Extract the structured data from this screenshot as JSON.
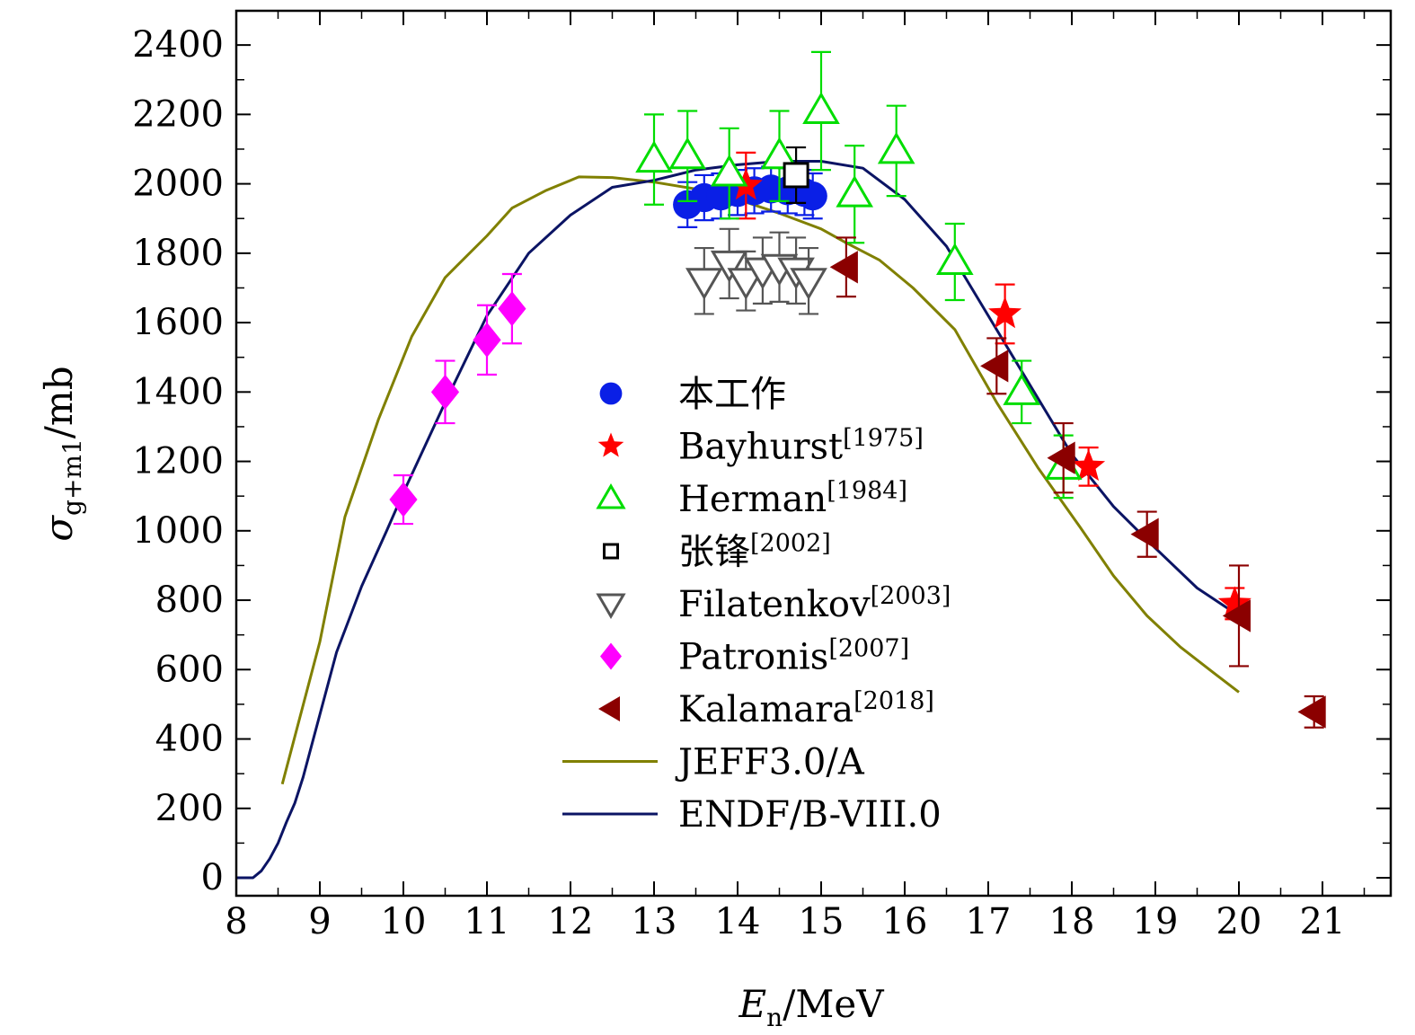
{
  "chart_data": {
    "type": "scatter",
    "xlabel": {
      "symbol": "E",
      "sub": "n",
      "unit": "/MeV"
    },
    "ylabel": {
      "symbol": "σ",
      "sub": "g+m1",
      "unit": "/mb"
    },
    "xlim": [
      8,
      21.5
    ],
    "ylim": [
      0,
      2600
    ],
    "xticks": [
      8,
      9,
      10,
      11,
      12,
      13,
      14,
      15,
      16,
      17,
      18,
      19,
      20,
      21
    ],
    "yticks": [
      0,
      200,
      400,
      600,
      800,
      1000,
      1200,
      1400,
      1600,
      1800,
      2000,
      2200,
      2400
    ],
    "legend_position": "center",
    "series": [
      {
        "name": "本工作",
        "sup": "",
        "marker": "circle",
        "color": "#0a1fe6",
        "points": [
          {
            "x": 13.4,
            "y": 1940,
            "err": 65
          },
          {
            "x": 13.6,
            "y": 1960,
            "err": 65
          },
          {
            "x": 13.8,
            "y": 1965,
            "err": 65
          },
          {
            "x": 14.0,
            "y": 1975,
            "err": 65
          },
          {
            "x": 14.2,
            "y": 1980,
            "err": 65
          },
          {
            "x": 14.4,
            "y": 1985,
            "err": 65
          },
          {
            "x": 14.6,
            "y": 1980,
            "err": 65
          },
          {
            "x": 14.8,
            "y": 1975,
            "err": 65
          },
          {
            "x": 14.9,
            "y": 1965,
            "err": 65
          }
        ]
      },
      {
        "name": "Bayhurst",
        "sup": "[1975]",
        "marker": "star",
        "color": "#ff0000",
        "points": [
          {
            "x": 14.1,
            "y": 1995,
            "err": 95
          },
          {
            "x": 17.2,
            "y": 1625,
            "err": 85
          },
          {
            "x": 18.2,
            "y": 1185,
            "err": 55
          },
          {
            "x": 19.95,
            "y": 790,
            "err": 45
          }
        ]
      },
      {
        "name": "Herman",
        "sup": "[1984]",
        "marker": "triangle-up",
        "color": "#00dd00",
        "points": [
          {
            "x": 13.0,
            "y": 2070,
            "err": 130
          },
          {
            "x": 13.4,
            "y": 2080,
            "err": 130
          },
          {
            "x": 13.9,
            "y": 2030,
            "err": 130
          },
          {
            "x": 14.5,
            "y": 2080,
            "err": 130
          },
          {
            "x": 15.0,
            "y": 2210,
            "err": 170
          },
          {
            "x": 15.4,
            "y": 1970,
            "err": 140
          },
          {
            "x": 15.9,
            "y": 2095,
            "err": 130
          },
          {
            "x": 16.6,
            "y": 1775,
            "err": 110
          },
          {
            "x": 17.4,
            "y": 1400,
            "err": 90
          },
          {
            "x": 17.9,
            "y": 1185,
            "err": 90
          }
        ]
      },
      {
        "name": "张锋",
        "sup": "[2002]",
        "marker": "square",
        "color": "#000000",
        "points": [
          {
            "x": 14.7,
            "y": 2025,
            "err": 80
          }
        ]
      },
      {
        "name": "Filatenkov",
        "sup": "[2003]",
        "marker": "triangle-down",
        "color": "#555555",
        "points": [
          {
            "x": 13.6,
            "y": 1720,
            "err": 95
          },
          {
            "x": 13.9,
            "y": 1770,
            "err": 100
          },
          {
            "x": 14.1,
            "y": 1720,
            "err": 85
          },
          {
            "x": 14.3,
            "y": 1750,
            "err": 95
          },
          {
            "x": 14.5,
            "y": 1760,
            "err": 100
          },
          {
            "x": 14.7,
            "y": 1750,
            "err": 95
          },
          {
            "x": 14.85,
            "y": 1720,
            "err": 95
          }
        ]
      },
      {
        "name": "Patronis",
        "sup": "[2007]",
        "marker": "diamond",
        "color": "#ff00ff",
        "points": [
          {
            "x": 10.0,
            "y": 1090,
            "err": 70
          },
          {
            "x": 10.5,
            "y": 1400,
            "err": 90
          },
          {
            "x": 11.0,
            "y": 1550,
            "err": 100
          },
          {
            "x": 11.3,
            "y": 1640,
            "err": 100
          }
        ]
      },
      {
        "name": "Kalamara",
        "sup": "[2018]",
        "marker": "triangle-left",
        "color": "#8b0000",
        "points": [
          {
            "x": 15.3,
            "y": 1760,
            "err": 85
          },
          {
            "x": 17.1,
            "y": 1475,
            "err": 80
          },
          {
            "x": 17.9,
            "y": 1210,
            "err": 100
          },
          {
            "x": 18.9,
            "y": 990,
            "err": 65
          },
          {
            "x": 20.0,
            "y": 755,
            "err": 145
          },
          {
            "x": 20.9,
            "y": 478,
            "err": 45
          }
        ]
      }
    ],
    "curves": [
      {
        "name": "JEFF3.0/A",
        "color": "#808000",
        "points": [
          [
            8.55,
            270
          ],
          [
            9.0,
            680
          ],
          [
            9.3,
            1040
          ],
          [
            9.7,
            1320
          ],
          [
            10.1,
            1560
          ],
          [
            10.5,
            1730
          ],
          [
            11.0,
            1850
          ],
          [
            11.3,
            1930
          ],
          [
            11.7,
            1980
          ],
          [
            12.1,
            2020
          ],
          [
            12.5,
            2018
          ],
          [
            13.0,
            2005
          ],
          [
            13.5,
            1985
          ],
          [
            14.0,
            1955
          ],
          [
            14.5,
            1915
          ],
          [
            15.0,
            1870
          ],
          [
            15.3,
            1830
          ],
          [
            15.7,
            1780
          ],
          [
            16.1,
            1700
          ],
          [
            16.6,
            1580
          ],
          [
            17.1,
            1370
          ],
          [
            17.6,
            1180
          ],
          [
            18.1,
            1010
          ],
          [
            18.5,
            870
          ],
          [
            18.9,
            755
          ],
          [
            19.3,
            665
          ],
          [
            19.7,
            590
          ],
          [
            20.0,
            535
          ]
        ]
      },
      {
        "name": "ENDF/B-VIII.0",
        "color": "#0b1464",
        "points": [
          [
            8.0,
            0
          ],
          [
            8.2,
            0
          ],
          [
            8.3,
            20
          ],
          [
            8.4,
            55
          ],
          [
            8.5,
            100
          ],
          [
            8.6,
            160
          ],
          [
            8.7,
            215
          ],
          [
            8.8,
            290
          ],
          [
            9.0,
            470
          ],
          [
            9.2,
            650
          ],
          [
            9.5,
            840
          ],
          [
            9.8,
            1000
          ],
          [
            10.0,
            1110
          ],
          [
            10.5,
            1370
          ],
          [
            11.0,
            1620
          ],
          [
            11.5,
            1800
          ],
          [
            12.0,
            1910
          ],
          [
            12.5,
            1990
          ],
          [
            13.0,
            2010
          ],
          [
            13.5,
            2040
          ],
          [
            14.0,
            2055
          ],
          [
            14.5,
            2065
          ],
          [
            15.0,
            2065
          ],
          [
            15.5,
            2045
          ],
          [
            16.0,
            1955
          ],
          [
            16.5,
            1820
          ],
          [
            17.0,
            1620
          ],
          [
            17.5,
            1420
          ],
          [
            18.0,
            1220
          ],
          [
            18.5,
            1070
          ],
          [
            19.0,
            950
          ],
          [
            19.5,
            835
          ],
          [
            20.0,
            755
          ]
        ]
      }
    ]
  }
}
